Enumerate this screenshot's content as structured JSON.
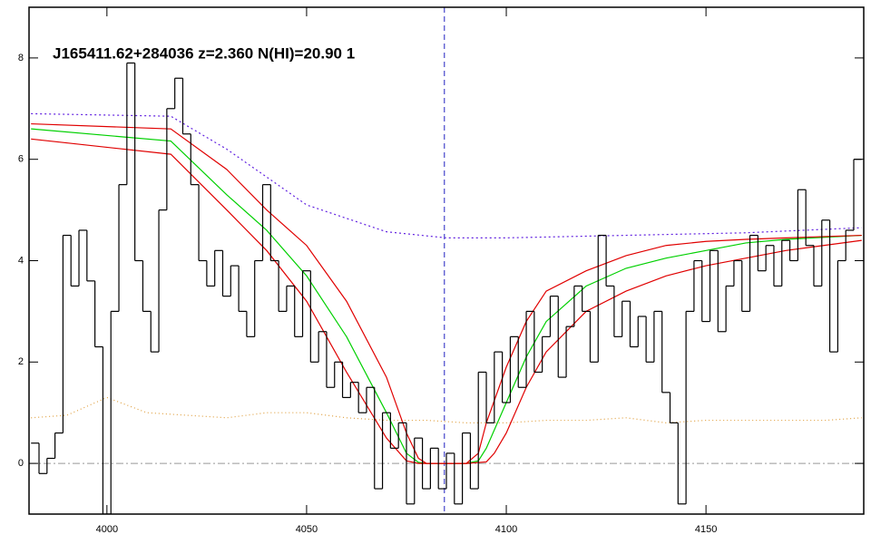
{
  "chart_data": {
    "type": "line",
    "title": "J165411.62+284036 z=2.360 N(HI)=20.90 1",
    "xlim": [
      3980.5,
      4189.5
    ],
    "ylim": [
      -1,
      9
    ],
    "xticks": [
      4000,
      4050,
      4100,
      4150
    ],
    "yticks": [
      0,
      2,
      4,
      6,
      8
    ],
    "vline": 4084.5,
    "vline_color": "#2020c0",
    "hline": 0,
    "hline_color": "#999999",
    "flux": {
      "color": "#000000",
      "x": [
        3982,
        3984,
        3986,
        3988,
        3990,
        3992,
        3994,
        3996,
        3998,
        4000,
        4002,
        4004,
        4006,
        4008,
        4010,
        4012,
        4014,
        4016,
        4018,
        4020,
        4022,
        4024,
        4026,
        4028,
        4030,
        4032,
        4034,
        4036,
        4038,
        4040,
        4042,
        4044,
        4046,
        4048,
        4050,
        4052,
        4054,
        4056,
        4058,
        4060,
        4062,
        4064,
        4066,
        4068,
        4070,
        4072,
        4074,
        4076,
        4078,
        4080,
        4082,
        4084,
        4086,
        4088,
        4090,
        4092,
        4094,
        4096,
        4098,
        4100,
        4102,
        4104,
        4106,
        4108,
        4110,
        4112,
        4114,
        4116,
        4118,
        4120,
        4122,
        4124,
        4126,
        4128,
        4130,
        4132,
        4134,
        4136,
        4138,
        4140,
        4142,
        4144,
        4146,
        4148,
        4150,
        4152,
        4154,
        4156,
        4158,
        4160,
        4162,
        4164,
        4166,
        4168,
        4170,
        4172,
        4174,
        4176,
        4178,
        4180,
        4182,
        4184,
        4186,
        4188
      ],
      "values": [
        0.4,
        -0.2,
        0.1,
        0.6,
        4.5,
        3.5,
        4.6,
        3.6,
        2.3,
        -1.0,
        3.0,
        5.5,
        7.9,
        4.0,
        3.0,
        2.2,
        5.0,
        7.0,
        7.6,
        6.5,
        5.5,
        4.0,
        3.5,
        4.2,
        3.3,
        3.9,
        3.0,
        2.5,
        4.0,
        5.5,
        4.0,
        3.0,
        3.5,
        2.5,
        3.8,
        2.0,
        2.6,
        1.5,
        2.0,
        1.3,
        1.6,
        1.0,
        1.5,
        -0.5,
        1.0,
        0.3,
        0.8,
        -0.8,
        0.5,
        -0.5,
        0.3,
        -0.5,
        0.2,
        -0.8,
        0.6,
        -0.5,
        1.8,
        0.8,
        2.2,
        1.2,
        2.5,
        1.5,
        3.0,
        1.8,
        2.5,
        3.3,
        1.7,
        2.7,
        3.5,
        3.0,
        2.0,
        4.5,
        3.5,
        2.5,
        3.2,
        2.3,
        2.9,
        2.0,
        3.0,
        1.4,
        0.8,
        -0.8,
        3.0,
        4.0,
        2.8,
        4.2,
        2.6,
        3.5,
        4.0,
        3.0,
        4.5,
        3.8,
        4.3,
        3.5,
        4.4,
        4.0,
        5.4,
        4.3,
        3.5,
        4.8,
        2.2,
        4.0,
        4.6,
        6.0
      ]
    },
    "series": [
      {
        "color": "#e0a040",
        "dash": "1,3",
        "x": [
          3981,
          3990,
          4000,
          4010,
          4020,
          4030,
          4040,
          4050,
          4060,
          4070,
          4080,
          4090,
          4100,
          4110,
          4120,
          4130,
          4140,
          4150,
          4160,
          4170,
          4180,
          4189
        ],
        "values": [
          0.9,
          0.95,
          1.3,
          1.0,
          0.95,
          0.9,
          1.0,
          1.0,
          0.9,
          0.85,
          0.85,
          0.8,
          0.8,
          0.85,
          0.85,
          0.9,
          0.8,
          0.85,
          0.85,
          0.85,
          0.85,
          0.9
        ]
      },
      {
        "color": "#6020e0",
        "dash": "2,3",
        "x": [
          3981,
          4016,
          4030,
          4050,
          4070,
          4085,
          4100,
          4130,
          4160,
          4189
        ],
        "values": [
          6.9,
          6.85,
          6.2,
          5.1,
          4.57,
          4.45,
          4.45,
          4.5,
          4.55,
          4.65
        ]
      },
      {
        "color": "#00d000",
        "dash": "",
        "x": [
          3981,
          4016,
          4030,
          4040,
          4050,
          4060,
          4070,
          4075,
          4078,
          4080,
          4090,
          4093,
          4095,
          4100,
          4105,
          4110,
          4120,
          4130,
          4140,
          4150,
          4160,
          4170,
          4189
        ],
        "values": [
          6.6,
          6.36,
          5.3,
          4.6,
          3.7,
          2.5,
          1.0,
          0.2,
          0.02,
          0,
          0,
          0.05,
          0.3,
          1.2,
          2.1,
          2.8,
          3.5,
          3.85,
          4.05,
          4.2,
          4.35,
          4.42,
          4.5
        ]
      },
      {
        "color": "#e00000",
        "dash": "",
        "x": [
          3981,
          4016,
          4030,
          4040,
          4050,
          4060,
          4070,
          4075,
          4078,
          4080,
          4090,
          4093,
          4095,
          4100,
          4105,
          4110,
          4120,
          4130,
          4140,
          4150,
          4160,
          4170,
          4189
        ],
        "values": [
          6.7,
          6.6,
          5.8,
          5.0,
          4.3,
          3.2,
          1.7,
          0.6,
          0.1,
          0,
          0,
          0.2,
          0.8,
          1.9,
          2.8,
          3.4,
          3.8,
          4.1,
          4.3,
          4.38,
          4.42,
          4.45,
          4.5
        ]
      },
      {
        "color": "#e00000",
        "dash": "",
        "x": [
          3981,
          4016,
          4030,
          4040,
          4050,
          4060,
          4070,
          4075,
          4078,
          4080,
          4090,
          4095,
          4097,
          4100,
          4105,
          4110,
          4120,
          4130,
          4140,
          4150,
          4160,
          4170,
          4189
        ],
        "values": [
          6.4,
          6.1,
          5.0,
          4.2,
          3.2,
          1.8,
          0.5,
          0.05,
          0,
          0,
          0,
          0.03,
          0.2,
          0.6,
          1.5,
          2.2,
          3.0,
          3.4,
          3.7,
          3.9,
          4.05,
          4.2,
          4.4
        ]
      }
    ]
  }
}
